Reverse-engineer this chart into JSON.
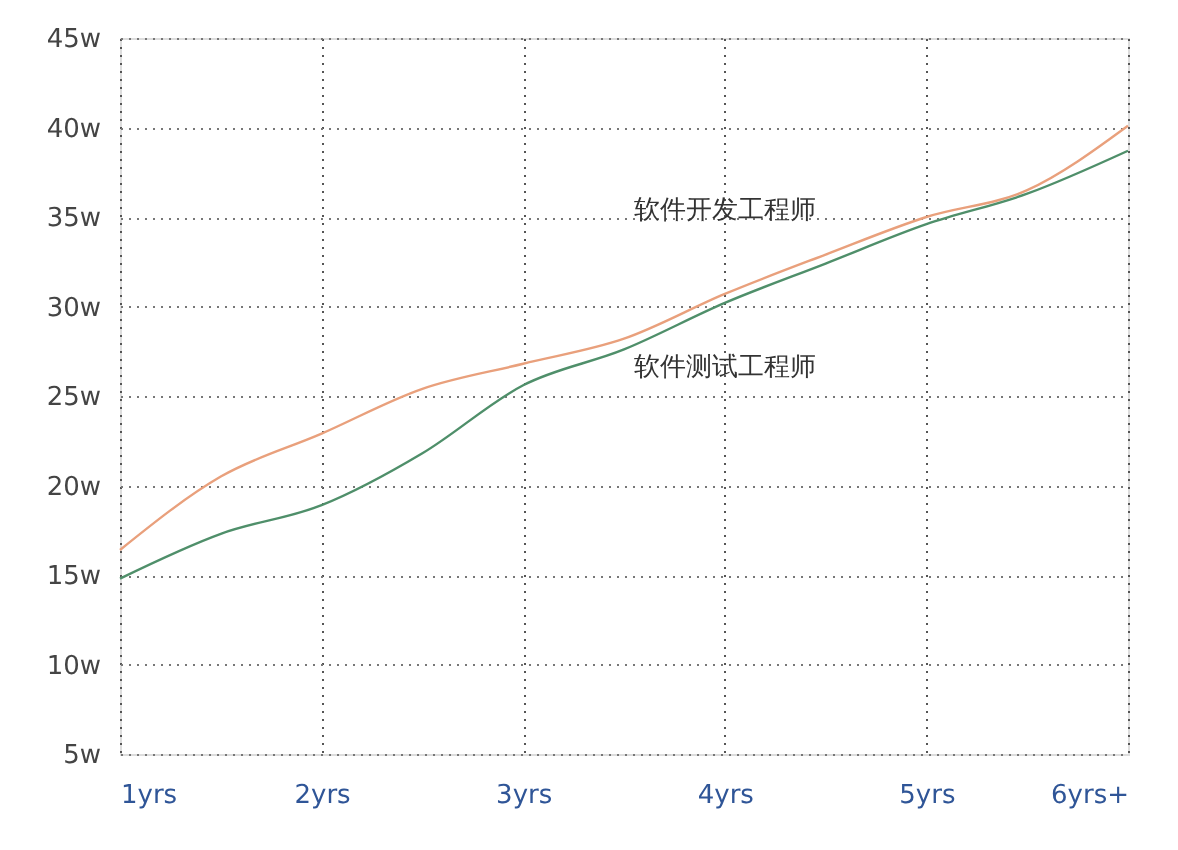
{
  "chart_data": {
    "type": "line",
    "x": [
      1,
      1.5,
      2,
      2.5,
      3,
      3.5,
      4,
      4.5,
      5,
      5.5,
      6
    ],
    "xlim": [
      1,
      6
    ],
    "xticks": [
      {
        "value": 1,
        "label": "1yrs"
      },
      {
        "value": 2,
        "label": "2yrs"
      },
      {
        "value": 3,
        "label": "3yrs"
      },
      {
        "value": 4,
        "label": "4yrs"
      },
      {
        "value": 5,
        "label": "5yrs"
      },
      {
        "value": 6,
        "label": "6yrs+"
      }
    ],
    "ylim": [
      5,
      45
    ],
    "yticks": [
      {
        "value": 5,
        "label": "5w"
      },
      {
        "value": 10,
        "label": "10w"
      },
      {
        "value": 15,
        "label": "15w"
      },
      {
        "value": 20,
        "label": "20w"
      },
      {
        "value": 25,
        "label": "25w"
      },
      {
        "value": 30,
        "label": "30w"
      },
      {
        "value": 35,
        "label": "35w"
      },
      {
        "value": 40,
        "label": "40w"
      },
      {
        "value": 45,
        "label": "45w"
      }
    ],
    "series": [
      {
        "name": "软件开发工程师",
        "color": "#e9a07c",
        "values": [
          16.4,
          20.5,
          22.9,
          25.4,
          26.8,
          28.2,
          30.7,
          32.9,
          35.0,
          36.5,
          40.1
        ]
      },
      {
        "name": "软件测试工程师",
        "color": "#4f8f6a",
        "values": [
          14.8,
          17.3,
          18.9,
          21.8,
          25.6,
          27.6,
          30.2,
          32.4,
          34.6,
          36.3,
          38.7
        ]
      }
    ],
    "grid": true,
    "marker": "none",
    "line_style": "solid"
  }
}
